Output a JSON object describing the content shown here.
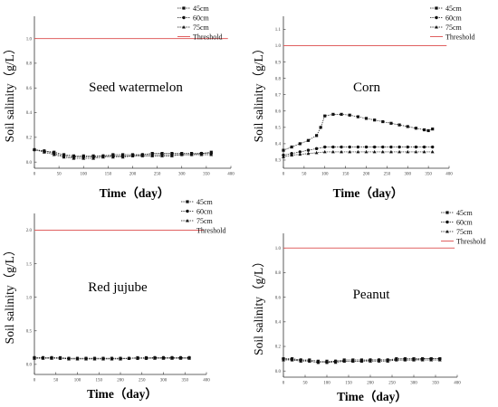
{
  "chart_data": [
    {
      "type": "line",
      "title": "Seed watermelon",
      "xlabel": "Time（day）",
      "ylabel": "Soil salinity（g/L）",
      "xlim": [
        0,
        400
      ],
      "ylim": [
        -0.05,
        1.18
      ],
      "xticks": [
        0,
        50,
        100,
        150,
        200,
        250,
        300,
        350,
        400
      ],
      "yticks": [
        0.0,
        0.2,
        0.4,
        0.6,
        0.8,
        1.0
      ],
      "ytick_labels": [
        "0.0",
        "0.2",
        "0.4",
        "0.6",
        "0.8",
        "1.0"
      ],
      "legend": {
        "position": "top-right",
        "entries": [
          "45cm",
          "60cm",
          "75cm",
          "Threshold"
        ]
      },
      "threshold": 1.0,
      "series": [
        {
          "name": "45cm",
          "marker": "square",
          "x": [
            0,
            20,
            40,
            60,
            80,
            100,
            120,
            140,
            160,
            180,
            200,
            220,
            240,
            260,
            280,
            300,
            320,
            340,
            360
          ],
          "y": [
            0.1,
            0.09,
            0.08,
            0.06,
            0.05,
            0.05,
            0.05,
            0.05,
            0.06,
            0.06,
            0.06,
            0.06,
            0.07,
            0.07,
            0.07,
            0.07,
            0.07,
            0.07,
            0.08
          ]
        },
        {
          "name": "60cm",
          "marker": "circle",
          "x": [
            0,
            20,
            40,
            60,
            80,
            100,
            120,
            140,
            160,
            180,
            200,
            220,
            240,
            260,
            280,
            300,
            320,
            340,
            360
          ],
          "y": [
            0.1,
            0.09,
            0.07,
            0.05,
            0.04,
            0.04,
            0.04,
            0.05,
            0.05,
            0.05,
            0.05,
            0.06,
            0.06,
            0.06,
            0.06,
            0.06,
            0.06,
            0.07,
            0.07
          ]
        },
        {
          "name": "75cm",
          "marker": "triangle",
          "x": [
            0,
            20,
            40,
            60,
            80,
            100,
            120,
            140,
            160,
            180,
            200,
            220,
            240,
            260,
            280,
            300,
            320,
            340,
            360
          ],
          "y": [
            0.1,
            0.08,
            0.06,
            0.04,
            0.03,
            0.03,
            0.03,
            0.04,
            0.04,
            0.04,
            0.05,
            0.05,
            0.05,
            0.05,
            0.05,
            0.06,
            0.06,
            0.06,
            0.06
          ]
        }
      ]
    },
    {
      "type": "line",
      "title": "Corn",
      "xlabel": "Time（day）",
      "ylabel": "Soil salinity（g/L）",
      "xlim": [
        0,
        400
      ],
      "ylim": [
        0.25,
        1.18
      ],
      "xticks": [
        0,
        50,
        100,
        150,
        200,
        250,
        300,
        350,
        400
      ],
      "yticks": [
        0.3,
        0.4,
        0.5,
        0.6,
        0.7,
        0.8,
        0.9,
        1.0,
        1.1
      ],
      "ytick_labels": [
        "0.3",
        "0.4",
        "0.5",
        "0.6",
        "0.7",
        "0.8",
        "0.9",
        "1.0",
        "1.1"
      ],
      "legend": {
        "position": "top-right",
        "entries": [
          "45cm",
          "60cm",
          "75cm",
          "Threshold"
        ]
      },
      "threshold": 1.0,
      "series": [
        {
          "name": "45cm",
          "marker": "square",
          "x": [
            0,
            20,
            40,
            60,
            80,
            90,
            100,
            120,
            140,
            160,
            180,
            200,
            220,
            240,
            260,
            280,
            300,
            320,
            340,
            350,
            360
          ],
          "y": [
            0.36,
            0.38,
            0.4,
            0.42,
            0.45,
            0.5,
            0.57,
            0.58,
            0.58,
            0.575,
            0.565,
            0.555,
            0.545,
            0.535,
            0.525,
            0.515,
            0.505,
            0.495,
            0.485,
            0.48,
            0.49
          ]
        },
        {
          "name": "60cm",
          "marker": "circle",
          "x": [
            0,
            20,
            40,
            60,
            80,
            100,
            120,
            140,
            160,
            180,
            200,
            220,
            240,
            260,
            280,
            300,
            320,
            340,
            360
          ],
          "y": [
            0.33,
            0.34,
            0.35,
            0.36,
            0.37,
            0.38,
            0.38,
            0.38,
            0.38,
            0.38,
            0.38,
            0.38,
            0.38,
            0.38,
            0.38,
            0.38,
            0.38,
            0.38,
            0.38
          ]
        },
        {
          "name": "75cm",
          "marker": "triangle",
          "x": [
            0,
            20,
            40,
            60,
            80,
            100,
            120,
            140,
            160,
            180,
            200,
            220,
            240,
            260,
            280,
            300,
            320,
            340,
            360
          ],
          "y": [
            0.32,
            0.33,
            0.335,
            0.34,
            0.345,
            0.35,
            0.35,
            0.35,
            0.35,
            0.35,
            0.35,
            0.35,
            0.35,
            0.35,
            0.35,
            0.35,
            0.35,
            0.35,
            0.35
          ]
        }
      ]
    },
    {
      "type": "line",
      "title": "Red jujube",
      "xlabel": "Time（day）",
      "ylabel": "Soil salinity（g/L）",
      "xlim": [
        0,
        400
      ],
      "ylim": [
        -0.15,
        2.25
      ],
      "xticks": [
        0,
        50,
        100,
        150,
        200,
        250,
        300,
        350,
        400
      ],
      "yticks": [
        0.0,
        0.5,
        1.0,
        1.5,
        2.0
      ],
      "ytick_labels": [
        "0.0",
        "0.5",
        "1.0",
        "1.5",
        "2.0"
      ],
      "legend": {
        "position": "top-right",
        "entries": [
          "45cm",
          "60cm",
          "75cm",
          "Threshold"
        ]
      },
      "threshold": 2.0,
      "series": [
        {
          "name": "45cm",
          "marker": "square",
          "x": [
            0,
            20,
            40,
            60,
            80,
            100,
            120,
            140,
            160,
            180,
            200,
            220,
            240,
            260,
            280,
            300,
            320,
            340,
            360
          ],
          "y": [
            0.1,
            0.1,
            0.1,
            0.1,
            0.09,
            0.09,
            0.09,
            0.09,
            0.09,
            0.09,
            0.09,
            0.09,
            0.1,
            0.1,
            0.1,
            0.1,
            0.1,
            0.1,
            0.1
          ]
        },
        {
          "name": "60cm",
          "marker": "circle",
          "x": [
            0,
            20,
            40,
            60,
            80,
            100,
            120,
            140,
            160,
            180,
            200,
            220,
            240,
            260,
            280,
            300,
            320,
            340,
            360
          ],
          "y": [
            0.1,
            0.1,
            0.1,
            0.09,
            0.09,
            0.09,
            0.09,
            0.09,
            0.09,
            0.09,
            0.09,
            0.09,
            0.09,
            0.09,
            0.1,
            0.1,
            0.1,
            0.1,
            0.1
          ]
        },
        {
          "name": "75cm",
          "marker": "triangle",
          "x": [
            0,
            20,
            40,
            60,
            80,
            100,
            120,
            140,
            160,
            180,
            200,
            220,
            240,
            260,
            280,
            300,
            320,
            340,
            360
          ],
          "y": [
            0.09,
            0.09,
            0.09,
            0.09,
            0.08,
            0.08,
            0.08,
            0.08,
            0.08,
            0.08,
            0.08,
            0.09,
            0.09,
            0.09,
            0.09,
            0.09,
            0.09,
            0.09,
            0.09
          ]
        }
      ]
    },
    {
      "type": "line",
      "title": "Peanut",
      "xlabel": "Time（day）",
      "ylabel": "Soil salinity（g/L）",
      "xlim": [
        0,
        400
      ],
      "ylim": [
        -0.05,
        1.12
      ],
      "xticks": [
        0,
        50,
        100,
        150,
        200,
        250,
        300,
        350,
        400
      ],
      "yticks": [
        0.0,
        0.2,
        0.4,
        0.6,
        0.8,
        1.0
      ],
      "ytick_labels": [
        "0.0",
        "0.2",
        "0.4",
        "0.6",
        "0.8",
        "1.0"
      ],
      "legend": {
        "position": "top-right",
        "entries": [
          "45cm",
          "60cm",
          "75cm",
          "Threshold"
        ]
      },
      "threshold": 1.0,
      "series": [
        {
          "name": "45cm",
          "marker": "square",
          "x": [
            0,
            20,
            40,
            60,
            80,
            100,
            120,
            140,
            160,
            180,
            200,
            220,
            240,
            260,
            280,
            300,
            320,
            340,
            360
          ],
          "y": [
            0.1,
            0.1,
            0.09,
            0.09,
            0.08,
            0.08,
            0.08,
            0.09,
            0.09,
            0.09,
            0.09,
            0.09,
            0.09,
            0.1,
            0.1,
            0.1,
            0.1,
            0.1,
            0.1
          ]
        },
        {
          "name": "60cm",
          "marker": "circle",
          "x": [
            0,
            20,
            40,
            60,
            80,
            100,
            120,
            140,
            160,
            180,
            200,
            220,
            240,
            260,
            280,
            300,
            320,
            340,
            360
          ],
          "y": [
            0.1,
            0.09,
            0.09,
            0.08,
            0.07,
            0.07,
            0.08,
            0.08,
            0.08,
            0.08,
            0.09,
            0.09,
            0.09,
            0.09,
            0.09,
            0.09,
            0.1,
            0.1,
            0.1
          ]
        },
        {
          "name": "75cm",
          "marker": "triangle",
          "x": [
            0,
            20,
            40,
            60,
            80,
            100,
            120,
            140,
            160,
            180,
            200,
            220,
            240,
            260,
            280,
            300,
            320,
            340,
            360
          ],
          "y": [
            0.09,
            0.09,
            0.08,
            0.08,
            0.07,
            0.07,
            0.07,
            0.08,
            0.08,
            0.08,
            0.08,
            0.08,
            0.08,
            0.09,
            0.09,
            0.09,
            0.09,
            0.09,
            0.09
          ]
        }
      ]
    }
  ],
  "style": {
    "threshold_color": "#e06060",
    "series_color": "#111111",
    "axis_color": "#333333"
  }
}
